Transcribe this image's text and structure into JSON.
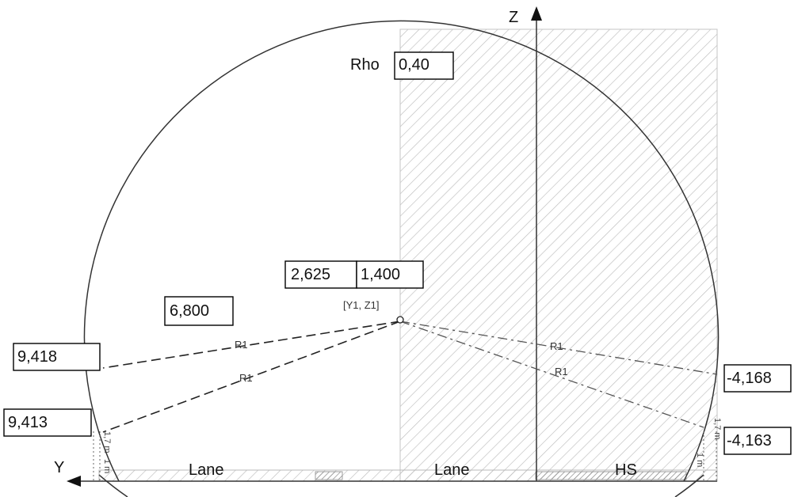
{
  "axes": {
    "z_label": "Z",
    "y_label": "Y"
  },
  "rho": {
    "label": "Rho",
    "value": "0,40"
  },
  "center": {
    "y1": "2,625",
    "z1": "1,400",
    "label": "[Y1, Z1]"
  },
  "radius": {
    "value": "6,800",
    "line_label": "R1"
  },
  "left_points": {
    "upper": "9,418",
    "lower": "9,413"
  },
  "right_points": {
    "upper": "-4,168",
    "lower": "-4,163"
  },
  "dimensions": {
    "height_label": "1,7 m",
    "width_label": "1 m"
  },
  "lanes": [
    "Lane",
    "Lane",
    "HS"
  ]
}
